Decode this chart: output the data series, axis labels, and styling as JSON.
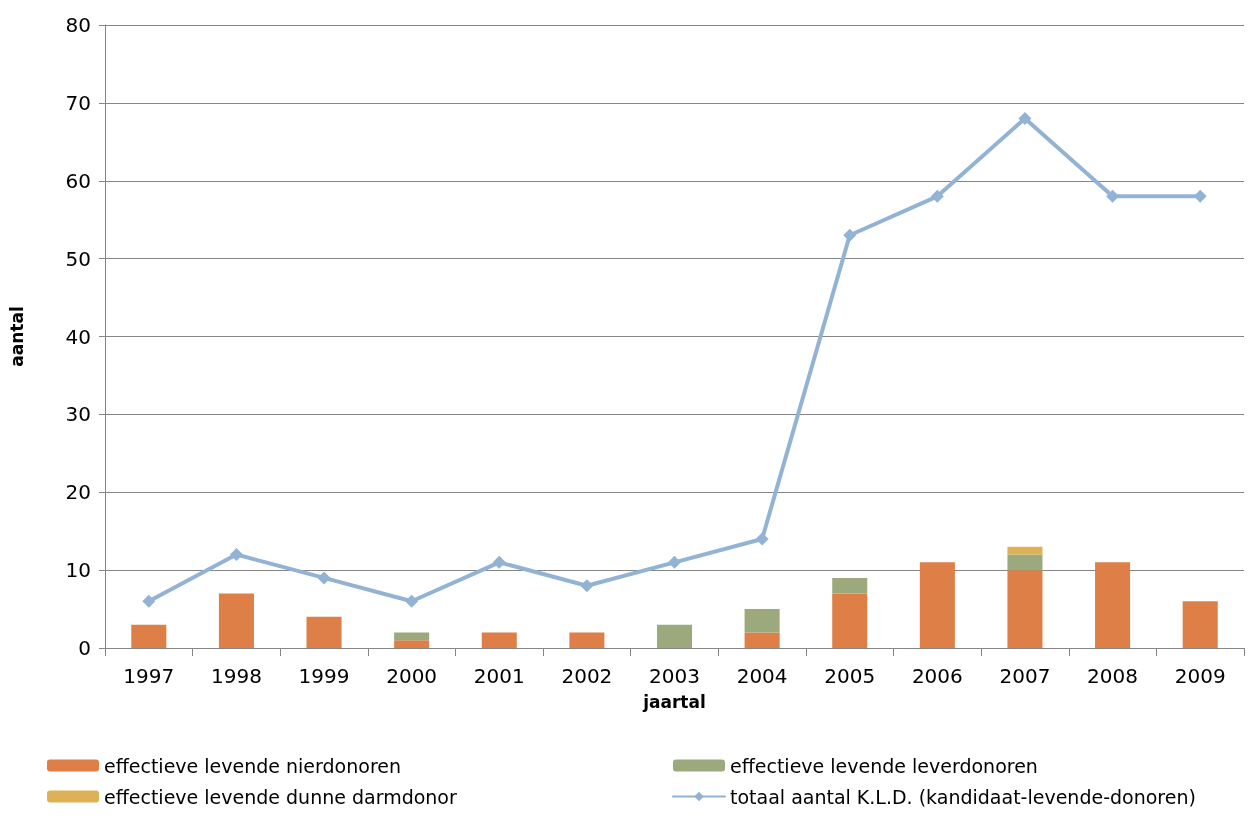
{
  "chart_data": {
    "type": "bar",
    "stacked": true,
    "xlabel": "jaartal",
    "ylabel": "aantal",
    "categories": [
      "1997",
      "1998",
      "1999",
      "2000",
      "2001",
      "2002",
      "2003",
      "2004",
      "2005",
      "2006",
      "2007",
      "2008",
      "2009"
    ],
    "series": [
      {
        "name": "effectieve levende nierdonoren",
        "color": "#dd7f47",
        "values": [
          3,
          7,
          4,
          1,
          2,
          2,
          0,
          2,
          7,
          11,
          10,
          11,
          6
        ]
      },
      {
        "name": "effectieve levende leverdonoren",
        "color": "#9ca97c",
        "values": [
          0,
          0,
          0,
          1,
          0,
          0,
          3,
          3,
          2,
          0,
          2,
          0,
          0
        ]
      },
      {
        "name": "effectieve levende dunne darmdonor",
        "color": "#dfb157",
        "values": [
          0,
          0,
          0,
          0,
          0,
          0,
          0,
          0,
          0,
          0,
          1,
          0,
          0
        ]
      },
      {
        "name": "totaal aantal K.L.D. (kandidaat-levende-donoren)",
        "type": "line",
        "color": "#93b3d5",
        "marker": "diamond",
        "line_style": "solid",
        "values": [
          6,
          12,
          9,
          6,
          11,
          8,
          11,
          14,
          53,
          58,
          68,
          58,
          58
        ]
      }
    ],
    "ylim": [
      0,
      80
    ],
    "yticks": [
      0,
      10,
      20,
      30,
      40,
      50,
      60,
      70,
      80
    ],
    "grid": "y",
    "legend": "bottom"
  }
}
